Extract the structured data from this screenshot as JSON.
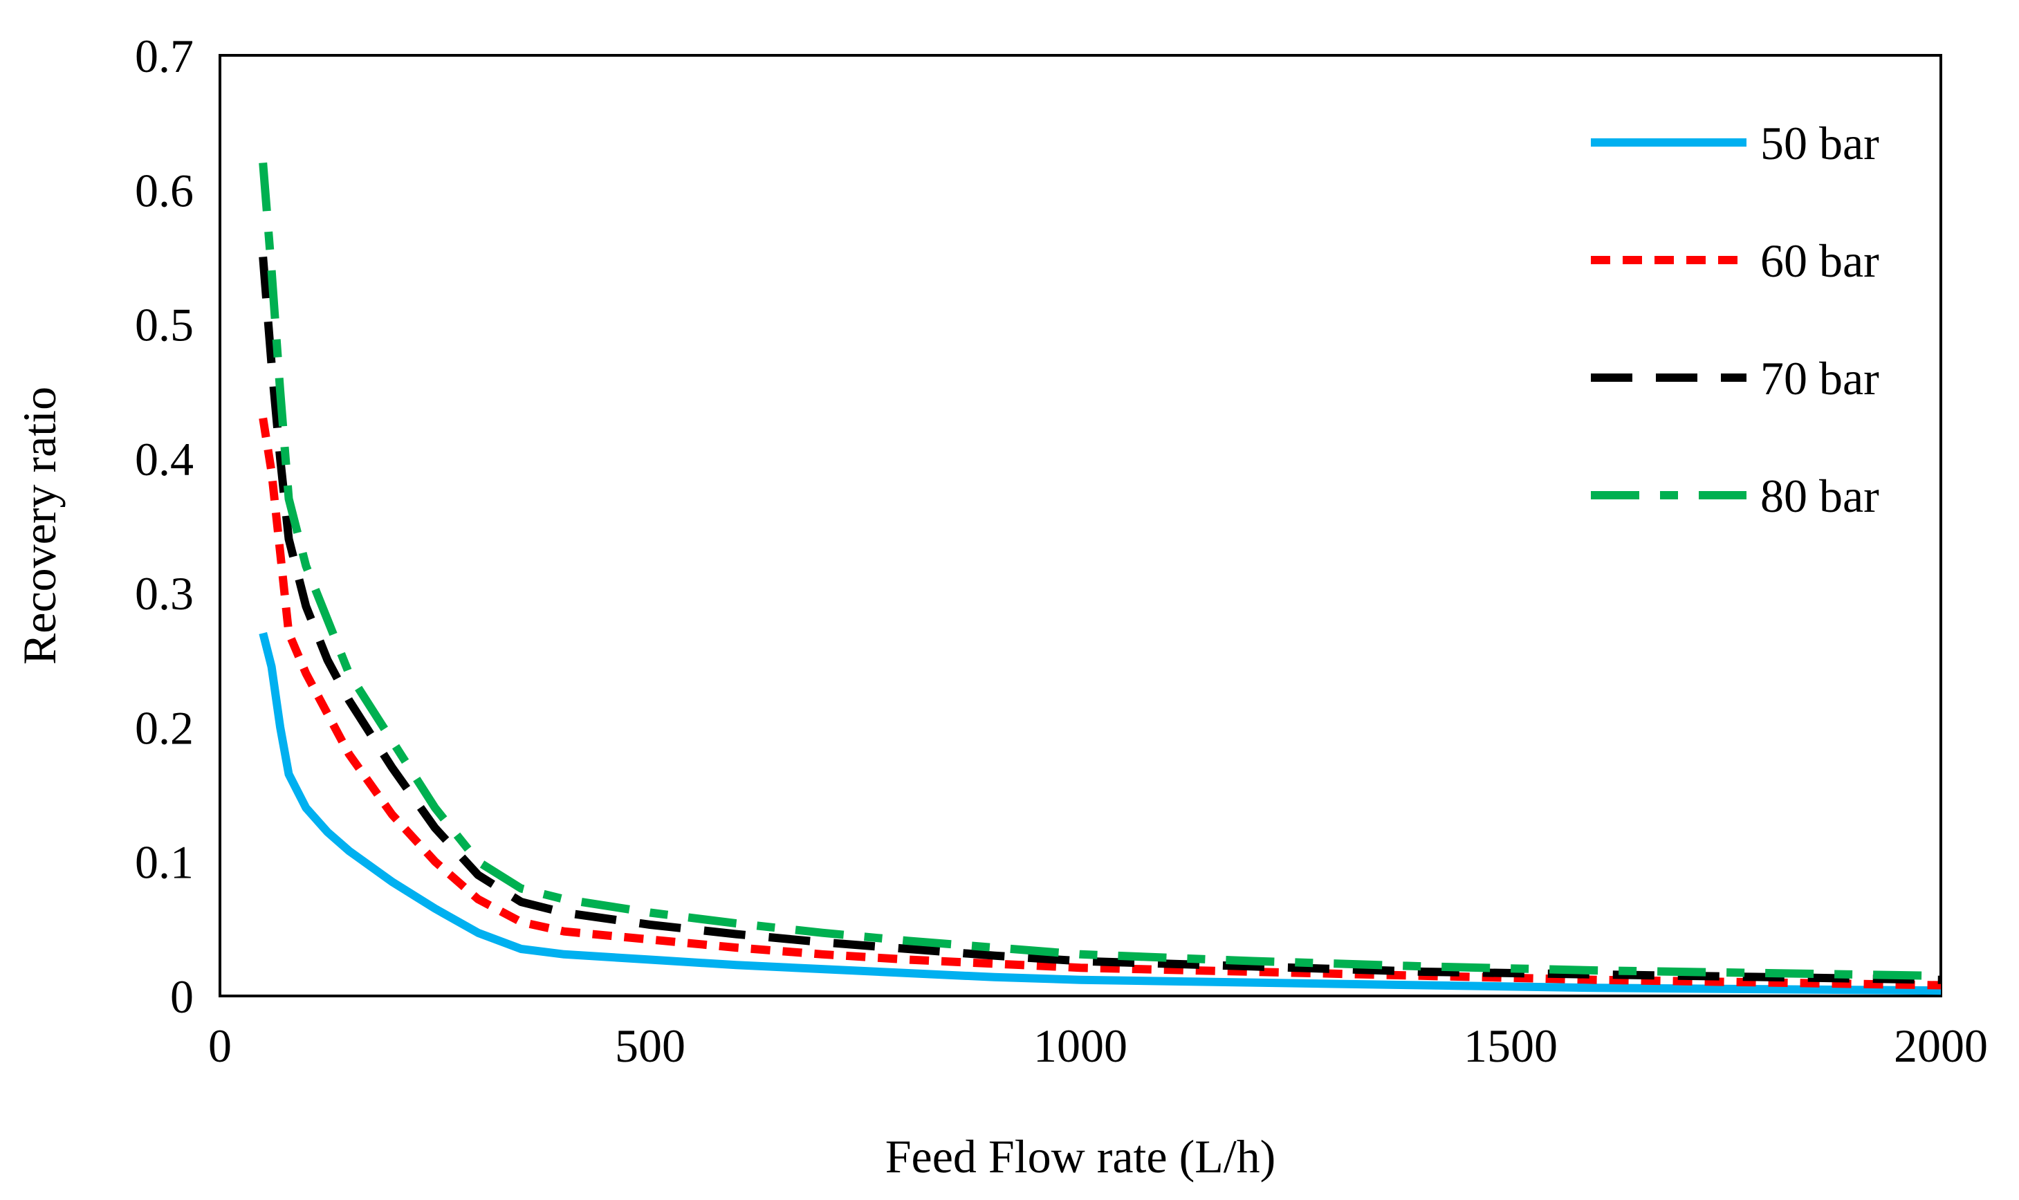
{
  "chart_data": {
    "type": "line",
    "title": "",
    "xlabel": "Feed Flow rate (L/h)",
    "ylabel": "Recovery ratio",
    "xlim": [
      0,
      2000
    ],
    "ylim": [
      0,
      0.7
    ],
    "xticks": [
      0,
      500,
      1000,
      1500,
      2000
    ],
    "yticks": [
      0,
      0.1,
      0.2,
      0.3,
      0.4,
      0.5,
      0.6,
      0.7
    ],
    "grid": false,
    "legend_position": "top-right",
    "series": [
      {
        "name": "50 bar",
        "color": "#00b0f0",
        "dash": "solid",
        "x": [
          50,
          60,
          70,
          80,
          100,
          125,
          150,
          200,
          250,
          300,
          350,
          400,
          500,
          600,
          700,
          800,
          900,
          1000,
          1200,
          1400,
          1600,
          1800,
          2000
        ],
        "y": [
          0.27,
          0.245,
          0.2,
          0.165,
          0.14,
          0.122,
          0.108,
          0.085,
          0.065,
          0.047,
          0.035,
          0.031,
          0.027,
          0.023,
          0.02,
          0.017,
          0.014,
          0.012,
          0.01,
          0.008,
          0.006,
          0.005,
          0.004
        ]
      },
      {
        "name": "60 bar",
        "color": "#ff0000",
        "dash": "short-dash",
        "x": [
          50,
          60,
          70,
          80,
          100,
          125,
          150,
          200,
          250,
          300,
          350,
          400,
          500,
          600,
          700,
          800,
          900,
          1000,
          1200,
          1400,
          1600,
          1800,
          2000
        ],
        "y": [
          0.43,
          0.39,
          0.33,
          0.27,
          0.24,
          0.21,
          0.18,
          0.135,
          0.1,
          0.072,
          0.055,
          0.048,
          0.042,
          0.036,
          0.031,
          0.027,
          0.024,
          0.021,
          0.018,
          0.015,
          0.012,
          0.01,
          0.008
        ]
      },
      {
        "name": "70 bar",
        "color": "#000000",
        "dash": "long-dash",
        "x": [
          50,
          60,
          70,
          80,
          100,
          125,
          150,
          200,
          250,
          300,
          350,
          400,
          500,
          600,
          700,
          800,
          900,
          1000,
          1200,
          1400,
          1600,
          1800,
          2000
        ],
        "y": [
          0.55,
          0.47,
          0.4,
          0.34,
          0.29,
          0.25,
          0.22,
          0.17,
          0.125,
          0.09,
          0.07,
          0.062,
          0.053,
          0.046,
          0.04,
          0.035,
          0.03,
          0.026,
          0.022,
          0.018,
          0.016,
          0.014,
          0.012
        ]
      },
      {
        "name": "80 bar",
        "color": "#00b050",
        "dash": "long-dash-dot",
        "x": [
          50,
          60,
          70,
          80,
          100,
          125,
          150,
          200,
          250,
          300,
          350,
          400,
          500,
          600,
          700,
          800,
          900,
          1000,
          1200,
          1400,
          1600,
          1800,
          2000
        ],
        "y": [
          0.62,
          0.54,
          0.45,
          0.37,
          0.32,
          0.28,
          0.24,
          0.19,
          0.14,
          0.1,
          0.08,
          0.072,
          0.062,
          0.054,
          0.047,
          0.041,
          0.036,
          0.031,
          0.026,
          0.022,
          0.019,
          0.017,
          0.015
        ]
      }
    ]
  }
}
